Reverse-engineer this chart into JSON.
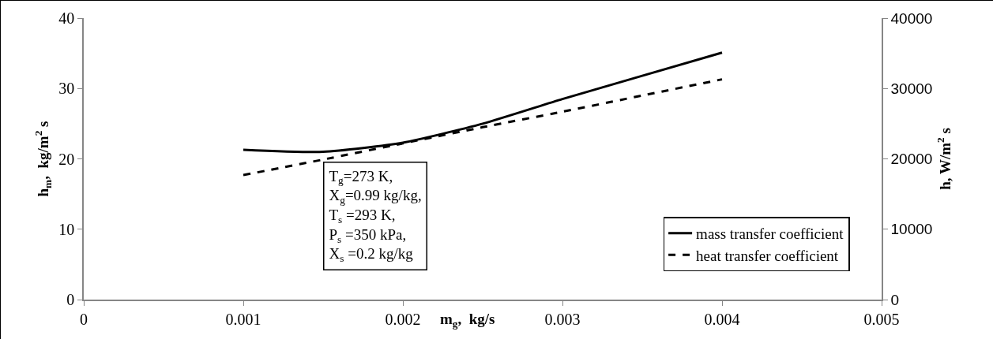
{
  "chart_data": {
    "type": "line",
    "xlabel": "m$_{g}$,  kg/s",
    "ylabel": "h$_{m}$,  kg/m$^{2}$ s",
    "y2label": "h, W/m$^{2}$ s",
    "x": [
      0.001,
      0.0015,
      0.002,
      0.0025,
      0.003,
      0.0035,
      0.004
    ],
    "series": [
      {
        "name": "mass transfer coefficient",
        "color": "#000000",
        "line_style": "solid",
        "values": [
          21.3,
          21.0,
          22.3,
          25.0,
          28.5,
          31.8,
          35.1
        ]
      },
      {
        "name": "heat transfer coefficient",
        "color": "#000000",
        "line_style": "dashed",
        "axis": "y2",
        "values": [
          17700,
          19900,
          22200,
          24500,
          26700,
          29000,
          31300
        ]
      }
    ],
    "xlim": [
      0,
      0.005
    ],
    "xticks": [
      0,
      0.001,
      0.002,
      0.003,
      0.004,
      0.005
    ],
    "ylim": [
      0,
      40
    ],
    "yticks": [
      0,
      10,
      20,
      30,
      40
    ],
    "y2lim": [
      0,
      40000
    ],
    "y2ticks": [
      0,
      10000,
      20000,
      30000,
      40000
    ],
    "grid": false,
    "legend": "bottom right",
    "marker": "none",
    "annotations": [
      "T$_{g}$=273 K,\nX$_{g}$=0.99 kg/kg,\nT$_{s}$ =293 K,\nP$_{s}$ =350 kPa,\nX$_{s}$ =0.2 kg/kg"
    ]
  }
}
